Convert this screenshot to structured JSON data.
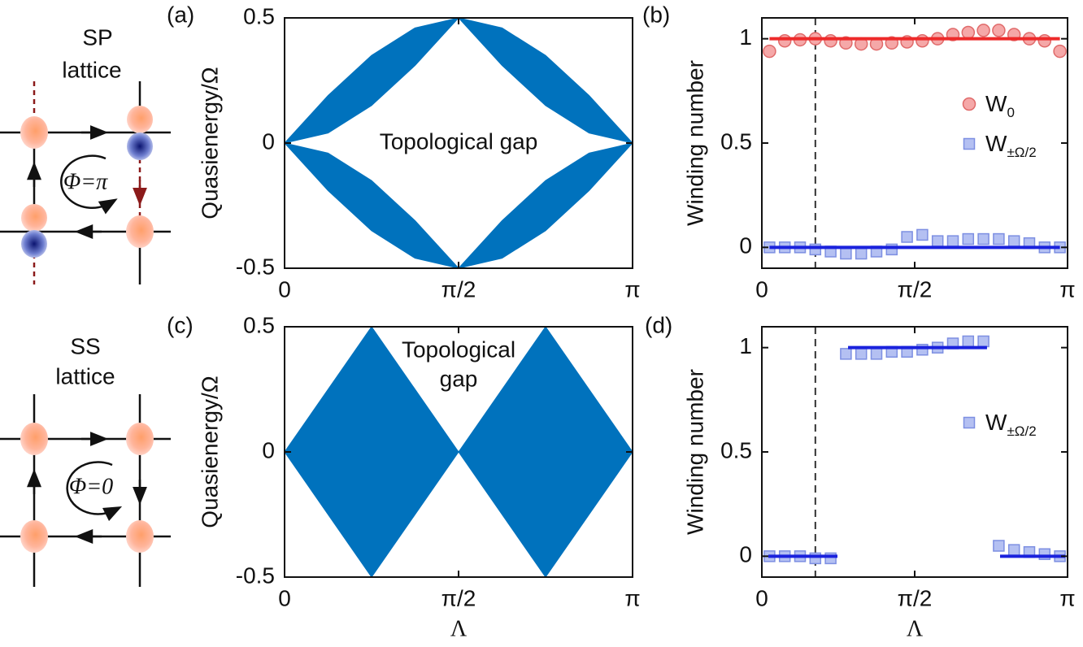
{
  "chart_data": [
    {
      "type": "band",
      "label": "(a)",
      "ylabel": "Quasienergy/Ω",
      "annotation": [
        "Topological gap"
      ],
      "color": "#0072bd",
      "x": [
        0,
        0.3927,
        0.7854,
        1.1781,
        1.5708,
        1.9635,
        2.3562,
        2.7489,
        3.1416
      ],
      "bands": [
        {
          "upper": [
            0,
            0.19,
            0.35,
            0.46,
            0.5,
            0.46,
            0.35,
            0.19,
            0
          ],
          "lower": [
            0,
            0.04,
            0.15,
            0.31,
            0.5,
            0.31,
            0.15,
            0.04,
            0
          ]
        },
        {
          "upper": [
            0,
            -0.04,
            -0.15,
            -0.31,
            -0.5,
            -0.31,
            -0.15,
            -0.04,
            0
          ],
          "lower": [
            0,
            -0.19,
            -0.35,
            -0.46,
            -0.5,
            -0.46,
            -0.35,
            -0.19,
            0
          ]
        }
      ],
      "xlim": [
        0,
        3.1416
      ],
      "xticks": [
        0,
        {
          "value": 1.5708,
          "label": "π/2"
        },
        {
          "value": 3.1416,
          "label": "π"
        }
      ],
      "ylim": [
        -0.5,
        0.5
      ],
      "yticks": [
        -0.5,
        0,
        0.5
      ]
    },
    {
      "type": "scatter",
      "label": "(b)",
      "ylabel": "Winding number",
      "vline": 0.55,
      "x": [
        0.0785,
        0.2356,
        0.3927,
        0.5498,
        0.7069,
        0.8639,
        1.021,
        1.1781,
        1.3352,
        1.4923,
        1.6493,
        1.8064,
        1.9635,
        2.1206,
        2.2777,
        2.4347,
        2.5918,
        2.7489,
        2.906,
        3.0631
      ],
      "series": [
        {
          "name": "W",
          "subscript": "0",
          "marker": "circle",
          "color": "#f5a8a8",
          "edge": "#e06a6a",
          "values": [
            0.94,
            0.99,
            0.995,
            1.0,
            0.99,
            0.98,
            0.975,
            0.975,
            0.98,
            0.985,
            0.99,
            1.0,
            1.02,
            1.03,
            1.04,
            1.04,
            1.02,
            1.0,
            0.99,
            0.94
          ]
        },
        {
          "name": "W",
          "subscript": "±Ω/2",
          "marker": "square",
          "color": "#b4c0f2",
          "edge": "#7d8fe2",
          "values": [
            0,
            0,
            0,
            -0.01,
            -0.02,
            -0.03,
            -0.03,
            -0.02,
            -0.01,
            0.05,
            0.06,
            0.03,
            0.03,
            0.04,
            0.04,
            0.04,
            0.03,
            0.02,
            0,
            0
          ]
        }
      ],
      "fits": [
        {
          "color": "#ee2a2a",
          "x": [
            0.0785,
            3.0631
          ],
          "values": [
            1,
            1
          ]
        },
        {
          "color": "#1a22dd",
          "x": [
            0.0785,
            3.0631
          ],
          "values": [
            0,
            0
          ]
        }
      ],
      "xlim": [
        0,
        3.1416
      ],
      "xticks": [
        0,
        {
          "value": 1.5708,
          "label": "π/2"
        },
        {
          "value": 3.1416,
          "label": "π"
        }
      ],
      "ylim": [
        -0.1,
        1.1
      ],
      "yticks": [
        0,
        0.5,
        1
      ]
    },
    {
      "type": "band",
      "label": "(c)",
      "ylabel": "Quasienergy/Ω",
      "xlabel": "Λ",
      "annotation": [
        "Topological",
        "gap"
      ],
      "color": "#0072bd",
      "x": [
        0,
        0.7854,
        1.5708,
        2.3562,
        3.1416
      ],
      "bands": [
        {
          "upper": [
            0,
            0.5,
            0,
            0.5,
            0
          ],
          "lower": [
            0,
            -0.5,
            0,
            -0.5,
            0
          ]
        }
      ],
      "xlim": [
        0,
        3.1416
      ],
      "xticks": [
        0,
        {
          "value": 1.5708,
          "label": "π/2"
        },
        {
          "value": 3.1416,
          "label": "π"
        }
      ],
      "ylim": [
        -0.5,
        0.5
      ],
      "yticks": [
        -0.5,
        0,
        0.5
      ]
    },
    {
      "type": "scatter",
      "label": "(d)",
      "ylabel": "Winding number",
      "xlabel": "Λ",
      "vline": 0.55,
      "x": [
        0.0785,
        0.2356,
        0.3927,
        0.5498,
        0.7069,
        0.8639,
        1.021,
        1.1781,
        1.3352,
        1.4923,
        1.6493,
        1.8064,
        1.9635,
        2.1206,
        2.2777,
        2.4347,
        2.5918,
        2.7489,
        2.906,
        3.0631
      ],
      "series": [
        {
          "name": "W",
          "subscript": "±Ω/2",
          "marker": "square",
          "color": "#b4c0f2",
          "edge": "#7d8fe2",
          "values": [
            0,
            0,
            0,
            -0.01,
            -0.01,
            0.97,
            0.97,
            0.97,
            0.98,
            0.98,
            0.99,
            1.0,
            1.02,
            1.03,
            1.03,
            0.05,
            0.03,
            0.02,
            0.01,
            0
          ]
        }
      ],
      "fits": [
        {
          "color": "#1a22dd",
          "x": [
            0.067,
            0.777
          ],
          "values": [
            0,
            0
          ]
        },
        {
          "color": "#1a22dd",
          "x": [
            0.886,
            2.314
          ],
          "values": [
            1,
            1
          ]
        },
        {
          "color": "#1a22dd",
          "x": [
            2.448,
            3.117
          ],
          "values": [
            0,
            0
          ]
        }
      ],
      "xlim": [
        0,
        3.1416
      ],
      "xticks": [
        0,
        {
          "value": 1.5708,
          "label": "π/2"
        },
        {
          "value": 3.1416,
          "label": "π"
        }
      ],
      "ylim": [
        -0.1,
        1.1
      ],
      "yticks": [
        0,
        0.5,
        1
      ]
    }
  ],
  "diagrams": [
    {
      "title": [
        "SP",
        "lattice"
      ],
      "flux": "Φ=π"
    },
    {
      "title": [
        "SS",
        "lattice"
      ],
      "flux": "Φ=0"
    }
  ]
}
